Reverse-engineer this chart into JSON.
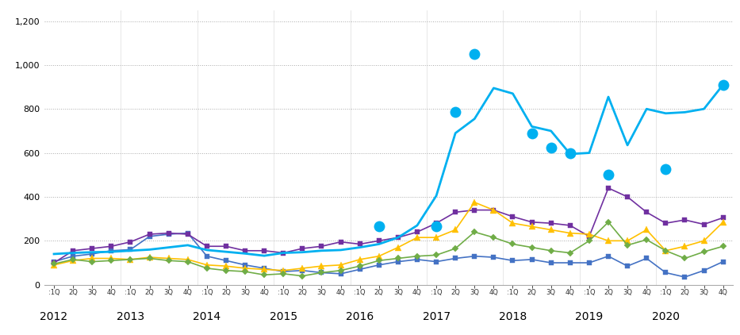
{
  "year_labels": [
    "2012",
    "2013",
    "2014",
    "2015",
    "2016",
    "2017",
    "2018",
    "2019",
    "2020"
  ],
  "year_positions": [
    0,
    4,
    8,
    12,
    16,
    20,
    24,
    28,
    32
  ],
  "ylim": [
    0,
    1250
  ],
  "yticks": [
    0,
    200,
    400,
    600,
    800,
    1000,
    1200
  ],
  "series": {
    "blue_sq": {
      "color": "#4472c4",
      "marker": "s",
      "markersize": 4.5,
      "linewidth": 1.2,
      "values": [
        105,
        130,
        140,
        155,
        160,
        220,
        230,
        235,
        130,
        110,
        90,
        75,
        60,
        65,
        55,
        50,
        70,
        90,
        105,
        115,
        105,
        120,
        130,
        125,
        110,
        115,
        100,
        100,
        100,
        130,
        85,
        120,
        55,
        35,
        65,
        105
      ]
    },
    "purple_sq": {
      "color": "#7030a0",
      "marker": "s",
      "markersize": 4.5,
      "linewidth": 1.2,
      "values": [
        100,
        155,
        165,
        175,
        195,
        230,
        235,
        230,
        175,
        175,
        155,
        155,
        145,
        165,
        175,
        195,
        185,
        200,
        215,
        240,
        280,
        330,
        340,
        340,
        310,
        285,
        280,
        270,
        220,
        440,
        400,
        330,
        280,
        295,
        275,
        305
      ]
    },
    "teal_line": {
      "color": "#00b0f0",
      "marker": "None",
      "markersize": 0,
      "linewidth": 2.0,
      "linestyle": "-",
      "values": [
        140,
        145,
        148,
        150,
        155,
        160,
        170,
        180,
        158,
        150,
        142,
        132,
        145,
        148,
        155,
        158,
        170,
        185,
        215,
        270,
        405,
        690,
        755,
        895,
        870,
        720,
        700,
        595,
        600,
        855,
        635,
        800,
        780,
        785,
        800,
        910
      ]
    },
    "cyan_dots": {
      "color": "#00b0f0",
      "marker": "o",
      "markersize": 10,
      "linewidth": 0,
      "linestyle": "None",
      "values": [
        null,
        null,
        null,
        null,
        null,
        null,
        null,
        null,
        null,
        null,
        null,
        null,
        null,
        null,
        null,
        null,
        null,
        265,
        null,
        null,
        265,
        785,
        1050,
        null,
        null,
        690,
        625,
        600,
        null,
        500,
        null,
        null,
        525,
        null,
        null,
        910
      ]
    },
    "gold_tri": {
      "color": "#ffc000",
      "marker": "^",
      "markersize": 5.5,
      "linewidth": 1.2,
      "values": [
        90,
        110,
        120,
        120,
        115,
        125,
        120,
        115,
        90,
        85,
        75,
        70,
        65,
        75,
        85,
        90,
        115,
        130,
        170,
        215,
        215,
        250,
        375,
        340,
        280,
        265,
        250,
        235,
        230,
        200,
        200,
        250,
        155,
        175,
        200,
        285
      ]
    },
    "green_dia": {
      "color": "#70ad47",
      "marker": "D",
      "markersize": 4.5,
      "linewidth": 1.2,
      "values": [
        95,
        115,
        105,
        110,
        115,
        120,
        110,
        105,
        75,
        65,
        60,
        45,
        50,
        40,
        55,
        65,
        85,
        110,
        120,
        130,
        135,
        165,
        240,
        215,
        185,
        170,
        155,
        145,
        200,
        285,
        180,
        205,
        155,
        120,
        150,
        175
      ]
    }
  }
}
